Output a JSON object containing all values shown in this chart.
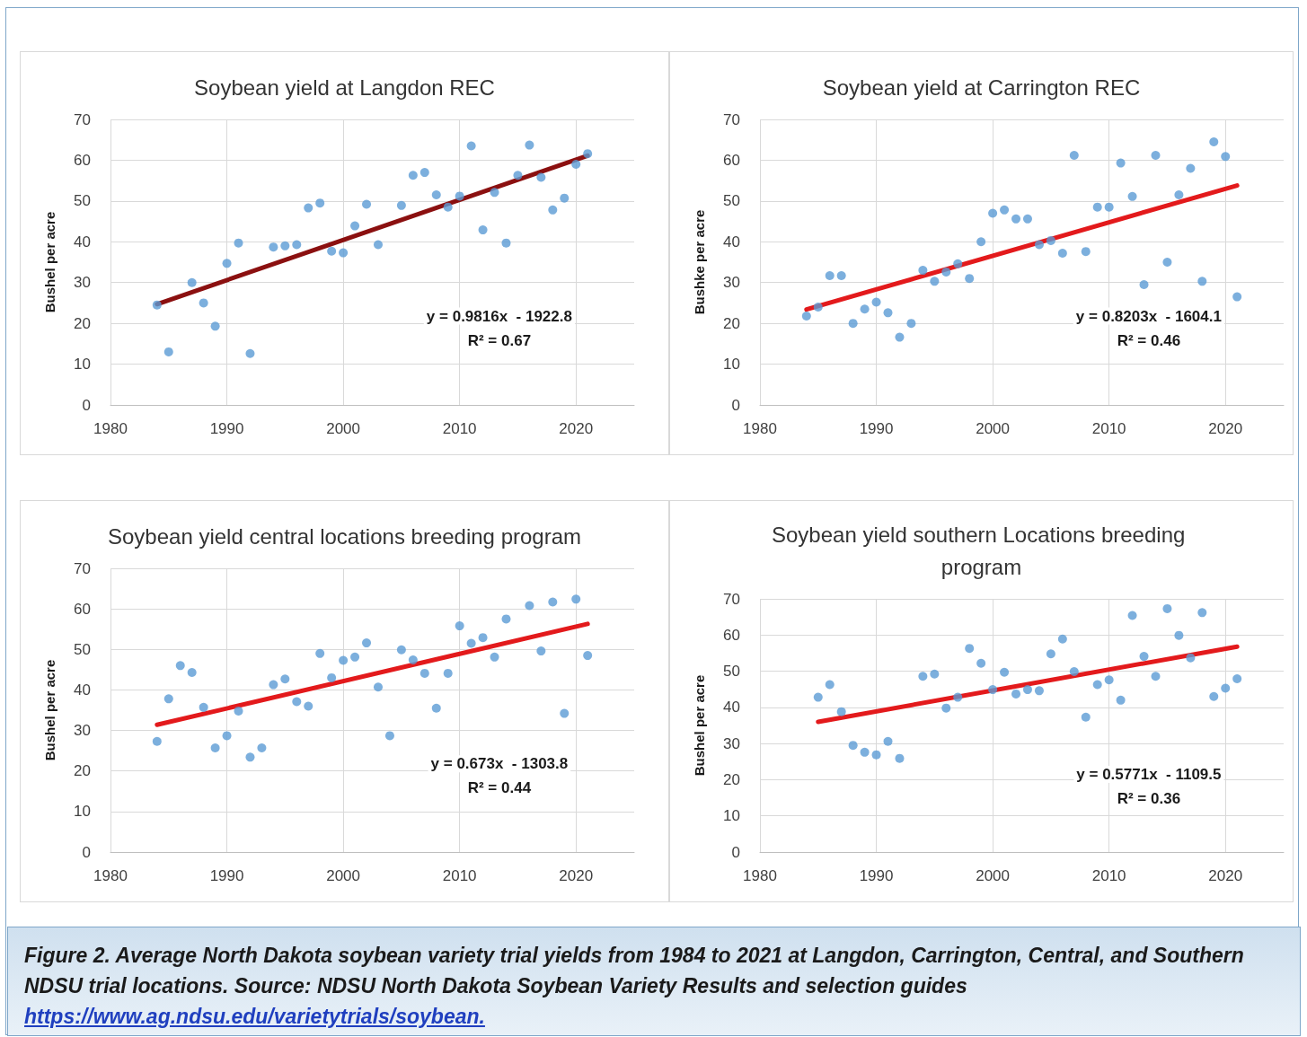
{
  "chart_data": [
    {
      "type": "scatter",
      "title": "Soybean yield at Langdon REC",
      "ylabel": "Bushel per acre",
      "xlim": [
        1980,
        2025
      ],
      "xticks": [
        1980,
        1990,
        2000,
        2010,
        2020
      ],
      "ylim": [
        0,
        70
      ],
      "yticks": [
        0,
        10,
        20,
        30,
        40,
        50,
        60,
        70
      ],
      "grid": true,
      "annotations": [
        "y = 0.9816x  - 1922.8",
        "R² = 0.67"
      ],
      "series": [
        {
          "color": "#5b9bd5",
          "marker": "circle",
          "x": [
            1984,
            1985,
            1987,
            1988,
            1989,
            1990,
            1991,
            1992,
            1994,
            1995,
            1996,
            1997,
            1998,
            1999,
            2000,
            2001,
            2002,
            2003,
            2005,
            2006,
            2007,
            2008,
            2009,
            2010,
            2011,
            2012,
            2013,
            2014,
            2015,
            2016,
            2017,
            2018,
            2019,
            2020,
            2021
          ],
          "values": [
            24.5,
            13,
            30,
            25,
            19.3,
            34.7,
            39.7,
            12.6,
            38.7,
            39,
            39.3,
            48.3,
            49.5,
            37.7,
            37.3,
            43.9,
            49.2,
            39.3,
            48.9,
            56.3,
            57,
            51.5,
            48.5,
            51.2,
            63.5,
            42.9,
            52.1,
            39.7,
            56.3,
            63.7,
            55.8,
            47.8,
            50.7,
            59,
            61.6
          ]
        },
        {
          "type": "line",
          "color": "#8b1010",
          "line_style": "solid",
          "x": [
            1984,
            2021
          ],
          "values": [
            24.7,
            61.1
          ]
        }
      ]
    },
    {
      "type": "scatter",
      "title": "Soybean yield at Carrington REC",
      "ylabel": "Bushke per acre",
      "xlim": [
        1980,
        2025
      ],
      "xticks": [
        1980,
        1990,
        2000,
        2010,
        2020
      ],
      "ylim": [
        0,
        70
      ],
      "yticks": [
        0,
        10,
        20,
        30,
        40,
        50,
        60,
        70
      ],
      "grid": true,
      "annotations": [
        "y = 0.8203x  - 1604.1",
        "R² = 0.46"
      ],
      "series": [
        {
          "color": "#5b9bd5",
          "marker": "circle",
          "x": [
            1984,
            1985,
            1986,
            1987,
            1988,
            1989,
            1990,
            1991,
            1992,
            1993,
            1994,
            1995,
            1996,
            1997,
            1998,
            1999,
            2000,
            2001,
            2002,
            2003,
            2004,
            2005,
            2006,
            2007,
            2008,
            2009,
            2010,
            2011,
            2012,
            2013,
            2014,
            2015,
            2016,
            2017,
            2018,
            2019,
            2020,
            2021
          ],
          "values": [
            21.8,
            24,
            31.7,
            31.7,
            20,
            23.5,
            25.2,
            22.6,
            16.6,
            20,
            33,
            30.3,
            32.6,
            34.6,
            31,
            40,
            47,
            47.8,
            45.6,
            45.6,
            39.3,
            40.3,
            37.2,
            61.2,
            37.6,
            48.5,
            48.5,
            59.3,
            51.1,
            29.5,
            61.2,
            35,
            51.5,
            58,
            30.3,
            64.5,
            60.9,
            26.5
          ]
        },
        {
          "type": "line",
          "color": "#e31a1c",
          "line_style": "solid",
          "x": [
            1984,
            2021
          ],
          "values": [
            23.4,
            53.8
          ]
        }
      ]
    },
    {
      "type": "scatter",
      "title": "Soybean yield central locations breeding program",
      "ylabel": "Bushel per acre",
      "xlim": [
        1980,
        2025
      ],
      "xticks": [
        1980,
        1990,
        2000,
        2010,
        2020
      ],
      "ylim": [
        0,
        70
      ],
      "yticks": [
        0,
        10,
        20,
        30,
        40,
        50,
        60,
        70
      ],
      "grid": true,
      "annotations": [
        "y = 0.673x  - 1303.8",
        "R² = 0.44"
      ],
      "series": [
        {
          "color": "#5b9bd5",
          "marker": "circle",
          "x": [
            1984,
            1985,
            1986,
            1987,
            1988,
            1989,
            1990,
            1991,
            1992,
            1993,
            1994,
            1995,
            1996,
            1997,
            1998,
            1999,
            2000,
            2001,
            2002,
            2003,
            2004,
            2005,
            2006,
            2007,
            2008,
            2009,
            2010,
            2011,
            2012,
            2013,
            2014,
            2016,
            2017,
            2018,
            2019,
            2020,
            2021
          ],
          "values": [
            27.3,
            37.8,
            46,
            44.3,
            35.7,
            25.7,
            28.7,
            34.8,
            23.4,
            25.7,
            41.3,
            42.7,
            37.1,
            36,
            49,
            43,
            47.3,
            48.1,
            51.6,
            40.7,
            28.7,
            49.9,
            47.4,
            44.1,
            35.5,
            44.1,
            55.8,
            51.5,
            52.9,
            48.1,
            57.5,
            60.8,
            49.6,
            61.7,
            34.2,
            62.4,
            48.5
          ]
        },
        {
          "type": "line",
          "color": "#e31a1c",
          "line_style": "solid",
          "x": [
            1984,
            2021
          ],
          "values": [
            31.4,
            56.3
          ]
        }
      ]
    },
    {
      "type": "scatter",
      "title": "Soybean yield southern Locations breeding program",
      "ylabel": "Bushel per acre",
      "xlim": [
        1980,
        2025
      ],
      "xticks": [
        1980,
        1990,
        2000,
        2010,
        2020
      ],
      "ylim": [
        0,
        70
      ],
      "yticks": [
        0,
        10,
        20,
        30,
        40,
        50,
        60,
        70
      ],
      "grid": true,
      "annotations": [
        "y = 0.5771x  - 1109.5",
        "R² = 0.36"
      ],
      "series": [
        {
          "color": "#5b9bd5",
          "marker": "circle",
          "x": [
            1985,
            1986,
            1987,
            1988,
            1989,
            1990,
            1991,
            1992,
            1994,
            1995,
            1996,
            1997,
            1998,
            1999,
            2000,
            2001,
            2002,
            2003,
            2004,
            2005,
            2006,
            2007,
            2008,
            2009,
            2010,
            2011,
            2012,
            2013,
            2014,
            2015,
            2016,
            2017,
            2018,
            2019,
            2020,
            2021
          ],
          "values": [
            42.8,
            46.3,
            38.8,
            29.5,
            27.6,
            26.9,
            30.6,
            25.9,
            48.6,
            49.2,
            39.8,
            42.8,
            56.3,
            52.2,
            44.9,
            49.7,
            43.7,
            44.9,
            44.6,
            54.8,
            58.9,
            49.9,
            37.3,
            46.3,
            47.6,
            42,
            65.4,
            54.1,
            48.6,
            67.3,
            59.9,
            53.7,
            66.2,
            43,
            45.3,
            47.9
          ]
        },
        {
          "type": "line",
          "color": "#e31a1c",
          "line_style": "solid",
          "x": [
            1985,
            2021
          ],
          "values": [
            36.0,
            56.8
          ]
        }
      ]
    },
    {
      "type": "other",
      "annotations": [
        "Figure 2. Average North Dakota soybean variety trial yields from 1984 to 2021 at Langdon, Carrington, Central, and Southern NDSU trial locations.  Source: NDSU  North Dakota Soybean Variety Results and selection guides",
        "https://www.ag.ndsu.edu/varietytrials/soybean."
      ]
    }
  ]
}
